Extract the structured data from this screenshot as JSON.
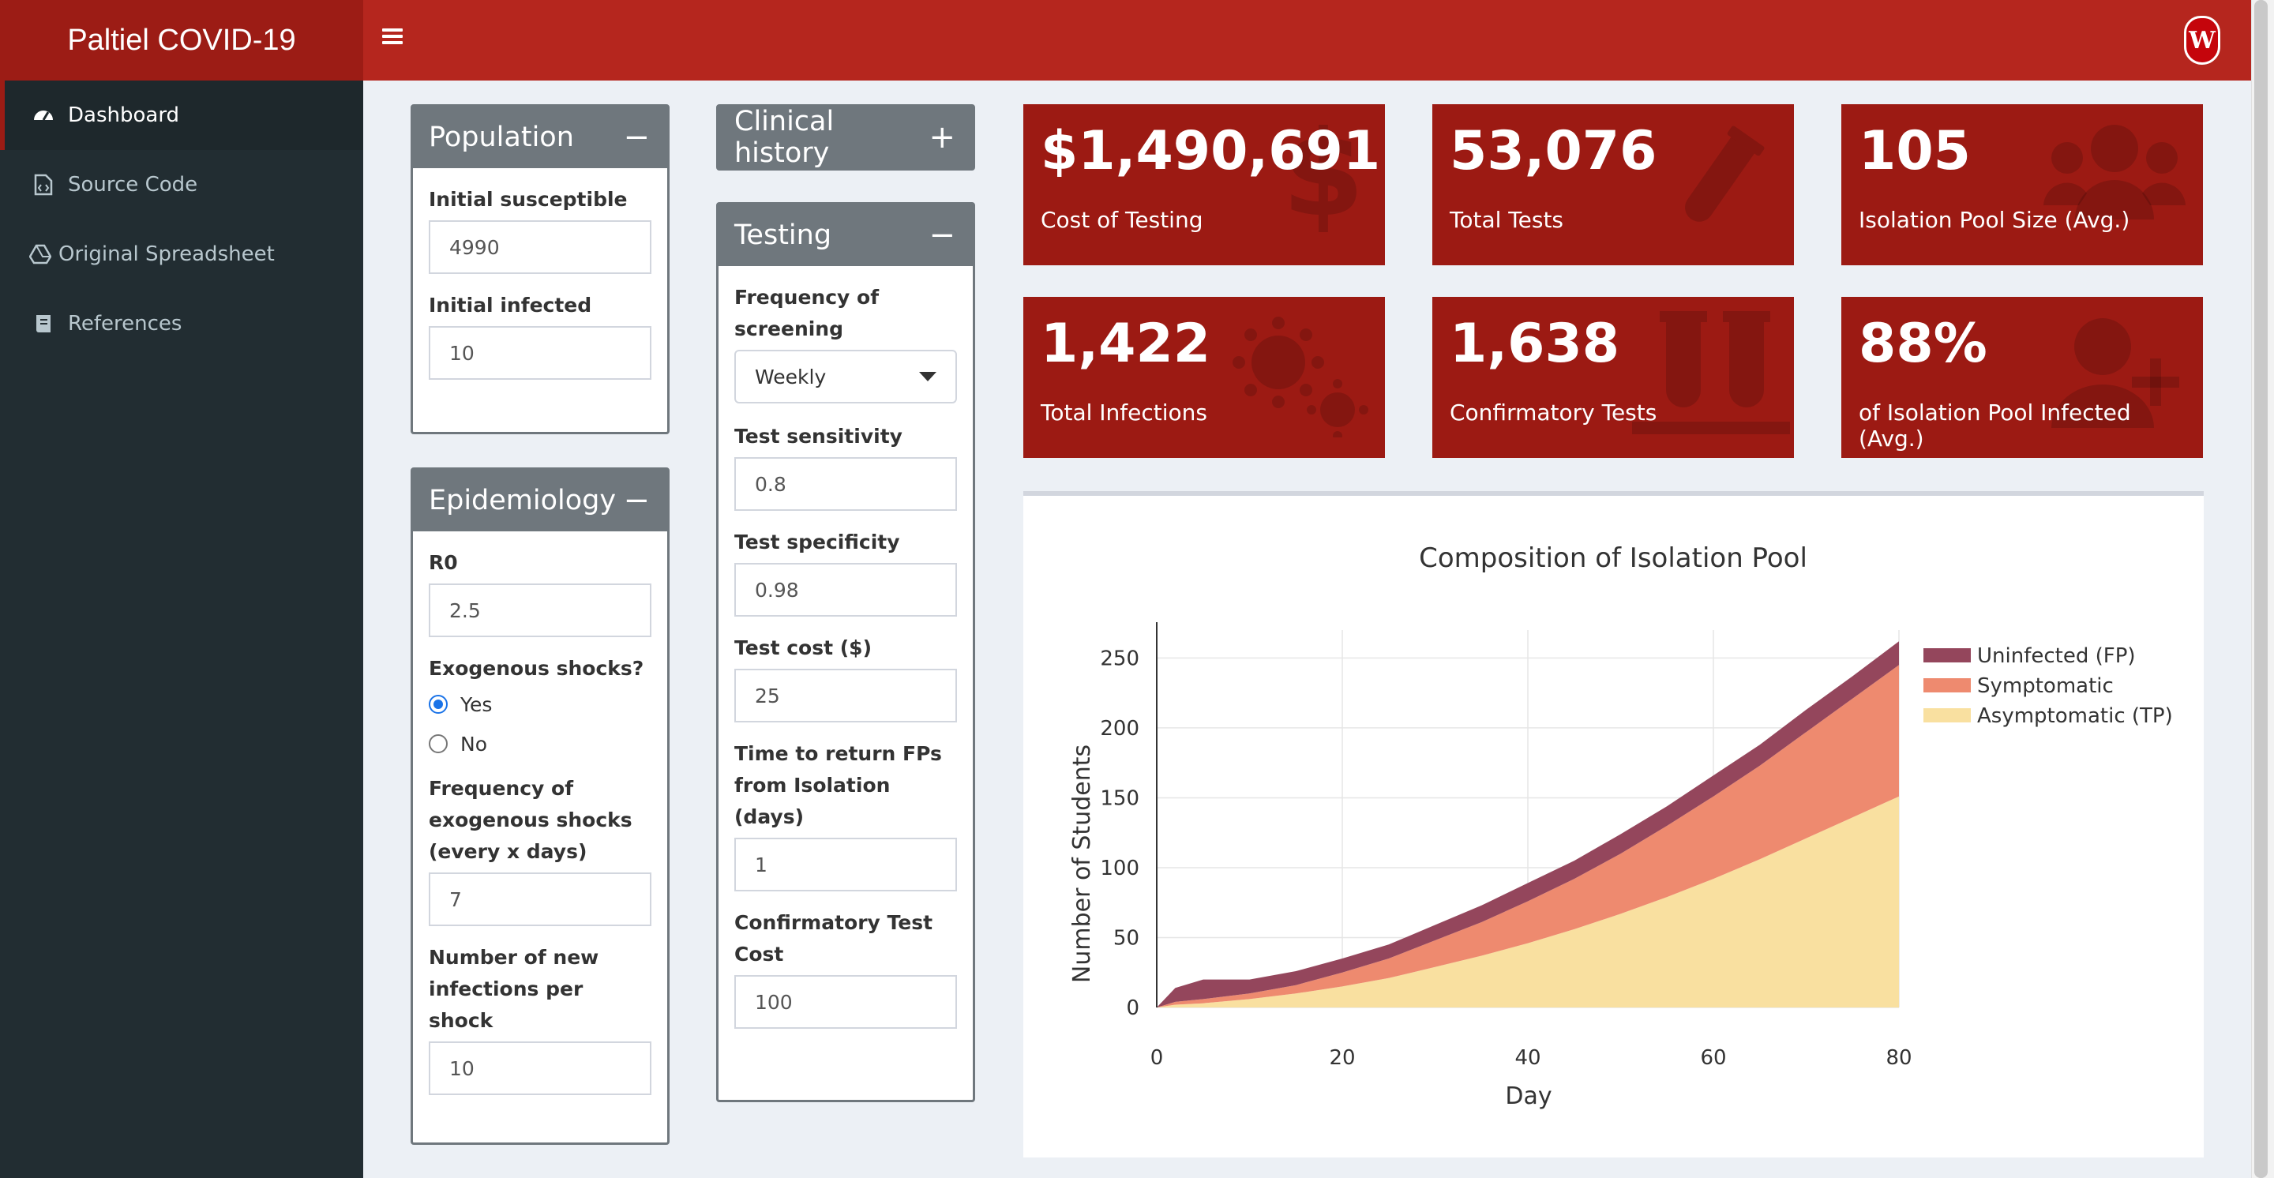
{
  "app": {
    "title": "Paltiel COVID-19"
  },
  "sidebar": {
    "items": [
      {
        "label": "Dashboard",
        "icon": "dashboard-icon"
      },
      {
        "label": "Source Code",
        "icon": "file-code-icon"
      },
      {
        "label": "Original Spreadsheet",
        "icon": "google-drive-icon"
      },
      {
        "label": "References",
        "icon": "book-icon"
      }
    ]
  },
  "population": {
    "title": "Population",
    "tool": "−",
    "initial_susceptible_label": "Initial susceptible",
    "initial_susceptible": "4990",
    "initial_infected_label": "Initial infected",
    "initial_infected": "10"
  },
  "epidemiology": {
    "title": "Epidemiology",
    "tool": "−",
    "r0_label": "R0",
    "r0": "2.5",
    "shocks_label": "Exogenous shocks?",
    "yes": "Yes",
    "no": "No",
    "selected": "Yes",
    "freq_label": "Frequency of exogenous shocks (every x days)",
    "freq": "7",
    "new_inf_label": "Number of new infections per shock",
    "new_inf": "10"
  },
  "clinical": {
    "title": "Clinical history",
    "tool": "+"
  },
  "testing": {
    "title": "Testing",
    "tool": "−",
    "freq_label": "Frequency of screening",
    "freq": "Weekly",
    "sens_label": "Test sensitivity",
    "sens": "0.8",
    "spec_label": "Test specificity",
    "spec": "0.98",
    "cost_label": "Test cost ($)",
    "cost": "25",
    "return_label": "Time to return FPs from Isolation (days)",
    "return": "1",
    "confirm_cost_label": "Confirmatory Test Cost",
    "confirm_cost": "100"
  },
  "value_boxes": [
    {
      "value": "$1,490,691",
      "label": "Cost of Testing",
      "icon": "dollar-icon"
    },
    {
      "value": "53,076",
      "label": "Total Tests",
      "icon": "vial-icon"
    },
    {
      "value": "105",
      "label": "Isolation Pool Size (Avg.)",
      "icon": "users-icon"
    },
    {
      "value": "1,422",
      "label": "Total Infections",
      "icon": "virus-icon"
    },
    {
      "value": "1,638",
      "label": "Confirmatory Tests",
      "icon": "vials-icon"
    },
    {
      "value": "88%",
      "label": "of Isolation Pool Infected (Avg.)",
      "icon": "user-plus-icon"
    }
  ],
  "colors": {
    "header": "#b5261e",
    "logo": "#9c1c15",
    "sidebar": "#222d32",
    "value_box": "#9c1a13",
    "fp": "#94465c",
    "symptomatic": "#ee8a6f",
    "asymptomatic": "#f9e0a0"
  },
  "chart_data": {
    "type": "area",
    "stacked": true,
    "title": "Composition of Isolation Pool",
    "xlabel": "Day",
    "ylabel": "Number of Students",
    "xlim": [
      0,
      80
    ],
    "ylim": [
      0,
      270
    ],
    "xticks": [
      0,
      20,
      40,
      60,
      80
    ],
    "yticks": [
      0,
      50,
      100,
      150,
      200,
      250
    ],
    "grid": true,
    "legend_position": "top-right",
    "x": [
      0,
      2,
      5,
      10,
      15,
      20,
      25,
      30,
      35,
      40,
      45,
      50,
      55,
      60,
      65,
      70,
      75,
      80
    ],
    "series": [
      {
        "name": "Asymptomatic (TP)",
        "values": [
          0,
          2,
          3,
          6,
          10,
          15,
          21,
          29,
          37,
          46,
          56,
          67,
          79,
          92,
          106,
          121,
          136,
          151
        ]
      },
      {
        "name": "Symptomatic",
        "values": [
          0,
          2,
          3,
          4,
          6,
          10,
          14,
          19,
          24,
          30,
          36,
          43,
          51,
          59,
          67,
          76,
          85,
          94
        ]
      },
      {
        "name": "Uninfected (FP)",
        "values": [
          0,
          10,
          14,
          10,
          10,
          10,
          10,
          11,
          12,
          13,
          13,
          14,
          14,
          15,
          15,
          16,
          16,
          17
        ]
      }
    ],
    "legend": [
      "Uninfected (FP)",
      "Symptomatic",
      "Asymptomatic (TP)"
    ]
  }
}
